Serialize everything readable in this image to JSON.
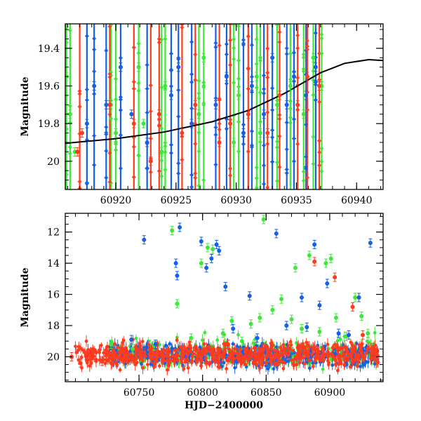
{
  "chart_data": [
    {
      "type": "scatter",
      "title": "",
      "xlabel": "",
      "ylabel": "Magnitude",
      "xlim": [
        60915.8,
        60942.2
      ],
      "ylim": [
        20.15,
        19.27
      ],
      "y_inverted": true,
      "xticks": [
        60920,
        60925,
        60930,
        60935,
        60940
      ],
      "xtick_labels": [
        "60920",
        "60925",
        "60930",
        "60935",
        "60940"
      ],
      "yticks": [
        19.4,
        19.6,
        19.8,
        20
      ],
      "ytick_labels": [
        "19.4",
        "19.6",
        "19.8",
        "20"
      ],
      "grid": false,
      "legend": "none",
      "colors": {
        "red": "#ff3b1f",
        "green": "#3ee83a",
        "blue": "#1560e6",
        "curve": "#000000"
      },
      "model_curve": {
        "x": [
          60915.8,
          60920,
          60924,
          60928,
          60931,
          60934,
          60937,
          60939,
          60941,
          60942.2
        ],
        "y": [
          19.905,
          19.88,
          19.845,
          19.79,
          19.73,
          19.64,
          19.53,
          19.48,
          19.46,
          19.465
        ]
      },
      "series": [
        {
          "color": "green",
          "x": [
            60915.9,
            60916.2,
            60916.6,
            60919.6,
            60920.0,
            60921.9,
            60922.3,
            60923.8,
            60924.1,
            60926.9,
            60927.3,
            60929.8,
            60930.2,
            60931.7,
            60932.0,
            60933.4,
            60934.5,
            60935.6,
            60936.4,
            60937.1
          ],
          "y": [
            19.55,
            19.75,
            19.95,
            19.7,
            19.85,
            19.5,
            19.8,
            19.95,
            19.6,
            19.75,
            19.45,
            19.9,
            19.65,
            19.55,
            19.85,
            19.7,
            19.6,
            19.75,
            19.45,
            19.6
          ]
        },
        {
          "color": "blue",
          "x": [
            60917.6,
            60918.2,
            60919.2,
            60920.4,
            60921.3,
            60922.6,
            60924.6,
            60925.2,
            60926.3,
            60928.3,
            60929.2,
            60930.6,
            60931.3,
            60932.3,
            60933.0,
            60934.2,
            60934.8,
            60935.8,
            60936.6
          ],
          "y": [
            19.8,
            19.6,
            19.7,
            19.5,
            19.75,
            19.9,
            19.65,
            19.5,
            19.8,
            19.7,
            19.55,
            19.85,
            19.6,
            19.75,
            19.45,
            19.7,
            19.55,
            19.65,
            19.5
          ]
        },
        {
          "color": "red",
          "x": [
            60916.8,
            60917.2,
            60919.5,
            60921.5,
            60922.9,
            60923.6,
            60925.5,
            60926.6,
            60928.6,
            60929.5,
            60931.0,
            60932.6,
            60933.6,
            60935.1,
            60935.9,
            60936.9
          ],
          "y": [
            19.95,
            19.85,
            19.7,
            19.8,
            20.0,
            19.75,
            19.85,
            19.7,
            19.9,
            19.8,
            19.75,
            19.85,
            19.65,
            19.7,
            19.55,
            19.6
          ]
        }
      ]
    },
    {
      "type": "scatter",
      "title": "",
      "xlabel": "HJD−2400000",
      "ylabel": "Magnitude",
      "xlim": [
        60692,
        60942
      ],
      "ylim": [
        21.6,
        10.8
      ],
      "y_inverted": true,
      "xticks": [
        60750,
        60800,
        60850,
        60900
      ],
      "xtick_labels": [
        "60750",
        "60800",
        "60850",
        "60900"
      ],
      "yticks": [
        12,
        14,
        16,
        18,
        20
      ],
      "ytick_labels": [
        "12",
        "14",
        "16",
        "18",
        "20"
      ],
      "grid": false,
      "legend": "none",
      "colors": {
        "red": "#ff3b1f",
        "green": "#3ee83a",
        "blue": "#1560e6",
        "curve": "#000000"
      },
      "series": [
        {
          "color": "green",
          "x": [
            60728,
            60745,
            60762,
            60776,
            60780,
            60791,
            60799,
            60804,
            60808,
            60816,
            60823,
            60831,
            60838,
            60845,
            60848,
            60855,
            60862,
            60870,
            60873,
            60878,
            60884,
            60892,
            60897,
            60901,
            60905,
            60913,
            60920,
            60925,
            60930
          ],
          "y": [
            19.2,
            19.5,
            19.3,
            11.9,
            16.6,
            18.8,
            14.0,
            13.0,
            13.1,
            18.5,
            17.7,
            19.0,
            17.9,
            17.5,
            11.2,
            17.0,
            16.3,
            17.6,
            14.3,
            18.2,
            13.5,
            18.4,
            14.0,
            13.7,
            17.5,
            18.7,
            16.2,
            17.4,
            18.5
          ]
        },
        {
          "color": "blue",
          "x": [
            60744,
            60754,
            60763,
            60779,
            60780,
            60782,
            60799,
            60803,
            60807,
            60811,
            60813,
            60818,
            60824,
            60837,
            60843,
            60858,
            60866,
            60878,
            60882,
            60888,
            60892,
            60898,
            60907,
            60915,
            60923,
            60932
          ],
          "y": [
            18.9,
            12.5,
            19.2,
            14.0,
            14.8,
            11.7,
            12.6,
            14.3,
            13.7,
            12.8,
            13.2,
            15.5,
            18.2,
            16.1,
            18.8,
            12.1,
            18.0,
            16.2,
            18.1,
            12.8,
            16.7,
            15.3,
            18.5,
            18.6,
            16.2,
            12.7
          ]
        },
        {
          "color": "red",
          "x": [
            60697,
            60704,
            60713,
            60721,
            60735,
            60760,
            60790,
            60806,
            60820,
            60842,
            60868,
            60876,
            60883,
            60888,
            60904,
            60918,
            60926,
            60934
          ],
          "y": [
            20.0,
            20.4,
            19.8,
            20.3,
            19.7,
            20.1,
            19.3,
            19.6,
            19.2,
            20.0,
            19.5,
            19.9,
            19.3,
            13.9,
            14.9,
            16.8,
            18.6,
            19.4
          ]
        }
      ]
    }
  ]
}
